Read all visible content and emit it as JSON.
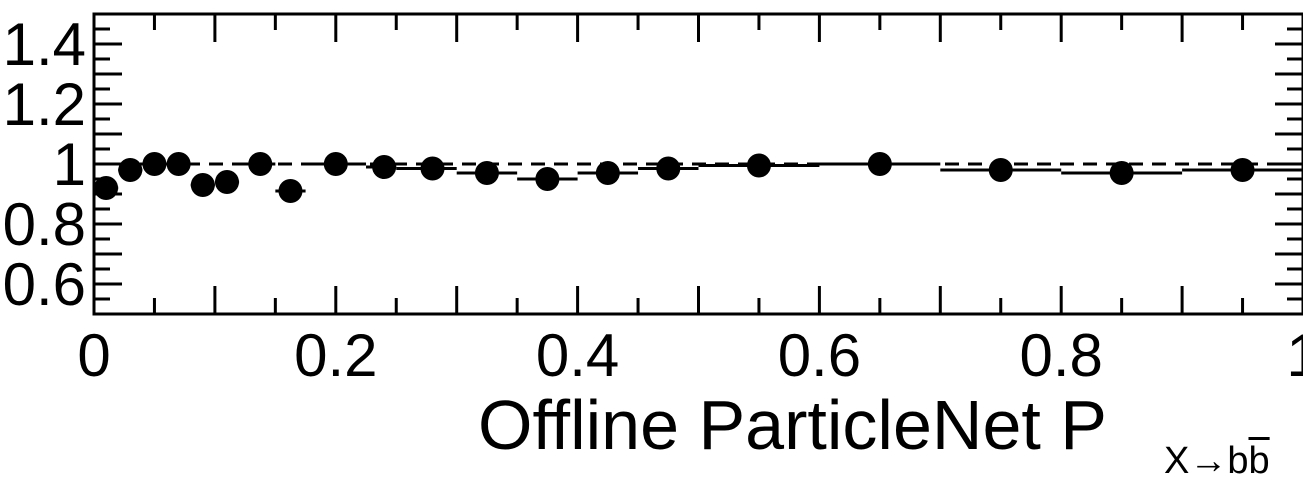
{
  "chart_data": {
    "type": "scatter",
    "title": "",
    "xlabel": "Offline ParticleNet P",
    "xlabel_subscript": "X→bb̄",
    "ylabel": "",
    "xlim": [
      0,
      1
    ],
    "ylim": [
      0.5,
      1.5
    ],
    "x_ticks": [
      {
        "value": 0,
        "label": "0"
      },
      {
        "value": 0.2,
        "label": "0.2"
      },
      {
        "value": 0.4,
        "label": "0.4"
      },
      {
        "value": 0.6,
        "label": "0.6"
      },
      {
        "value": 0.8,
        "label": "0.8"
      },
      {
        "value": 1.0,
        "label": "1"
      }
    ],
    "y_ticks": [
      {
        "value": 0.6,
        "label": "0.6"
      },
      {
        "value": 0.8,
        "label": "0.8"
      },
      {
        "value": 1.0,
        "label": "1"
      },
      {
        "value": 1.2,
        "label": "1.2"
      },
      {
        "value": 1.4,
        "label": "1.4"
      }
    ],
    "reference_line": {
      "y": 1.0,
      "style": "dashed"
    },
    "grid": false,
    "colors": {
      "marker": "#000000",
      "axis": "#000000",
      "background": "#ffffff"
    },
    "series": [
      {
        "points": [
          {
            "x": 0.01,
            "y": 0.92,
            "xlo": 0.0,
            "xhi": 0.02
          },
          {
            "x": 0.03,
            "y": 0.98,
            "xlo": 0.02,
            "xhi": 0.04
          },
          {
            "x": 0.05,
            "y": 1.0,
            "xlo": 0.04,
            "xhi": 0.06
          },
          {
            "x": 0.07,
            "y": 1.0,
            "xlo": 0.06,
            "xhi": 0.08
          },
          {
            "x": 0.09,
            "y": 0.93,
            "xlo": 0.08,
            "xhi": 0.1
          },
          {
            "x": 0.11,
            "y": 0.94,
            "xlo": 0.1,
            "xhi": 0.12
          },
          {
            "x": 0.1375,
            "y": 1.0,
            "xlo": 0.125,
            "xhi": 0.15
          },
          {
            "x": 0.1625,
            "y": 0.91,
            "xlo": 0.15,
            "xhi": 0.175
          },
          {
            "x": 0.2,
            "y": 1.0,
            "xlo": 0.175,
            "xhi": 0.225
          },
          {
            "x": 0.24,
            "y": 0.99,
            "xlo": 0.225,
            "xhi": 0.25
          },
          {
            "x": 0.28,
            "y": 0.985,
            "xlo": 0.25,
            "xhi": 0.3
          },
          {
            "x": 0.325,
            "y": 0.97,
            "xlo": 0.3,
            "xhi": 0.35
          },
          {
            "x": 0.375,
            "y": 0.95,
            "xlo": 0.35,
            "xhi": 0.4
          },
          {
            "x": 0.425,
            "y": 0.97,
            "xlo": 0.4,
            "xhi": 0.45
          },
          {
            "x": 0.475,
            "y": 0.985,
            "xlo": 0.45,
            "xhi": 0.5
          },
          {
            "x": 0.55,
            "y": 0.995,
            "xlo": 0.5,
            "xhi": 0.6
          },
          {
            "x": 0.65,
            "y": 1.0,
            "xlo": 0.6,
            "xhi": 0.7
          },
          {
            "x": 0.75,
            "y": 0.98,
            "xlo": 0.7,
            "xhi": 0.8
          },
          {
            "x": 0.85,
            "y": 0.97,
            "xlo": 0.8,
            "xhi": 0.9
          },
          {
            "x": 0.95,
            "y": 0.98,
            "xlo": 0.9,
            "xhi": 1.0
          }
        ]
      }
    ]
  }
}
